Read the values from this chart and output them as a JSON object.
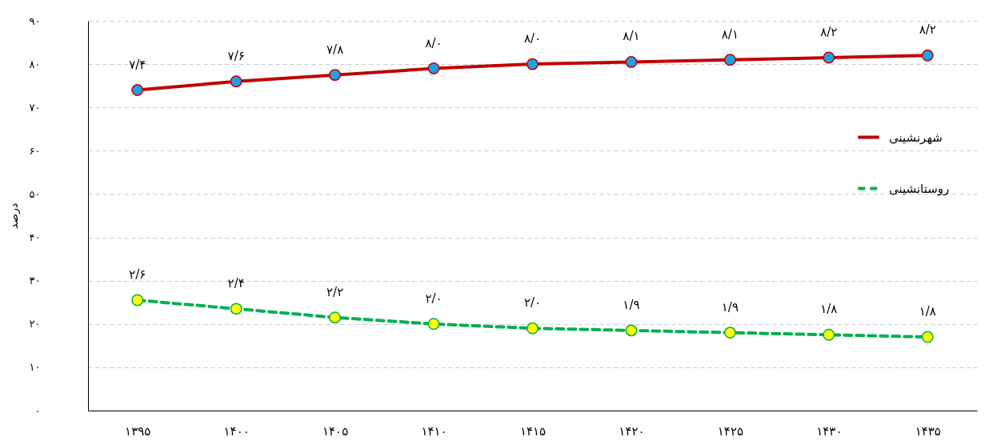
{
  "chart_data": {
    "type": "line",
    "ylabel": "درصد",
    "categories": [
      "۱۳۹۵",
      "۱۴۰۰",
      "۱۴۰۵",
      "۱۴۱۰",
      "۱۴۱۵",
      "۱۴۲۰",
      "۱۴۲۵",
      "۱۴۳۰",
      "۱۴۳۵"
    ],
    "series": [
      {
        "name": "شهرنشینی",
        "color": "#c00000",
        "line_style": "solid",
        "values": [
          74,
          76,
          77.5,
          79,
          80,
          80.5,
          81,
          81.5,
          82
        ]
      },
      {
        "name": "روستانشینی",
        "color": "#00b050",
        "line_style": "dashed",
        "values": [
          25.5,
          23.5,
          21.5,
          20,
          19,
          18.5,
          18,
          17.5,
          17
        ]
      }
    ],
    "annotations": [
      {
        "text": "۷/۴",
        "x": "۱۳۹۵",
        "y": 74
      },
      {
        "text": "۷/۶",
        "x": "۱۴۰۰",
        "y": 76
      },
      {
        "text": "۷/۸",
        "x": "۱۴۰۵",
        "y": 77.5
      },
      {
        "text": "۸/۰",
        "x": "۱۴۱۰",
        "y": 79
      },
      {
        "text": "۸/۰",
        "x": "۱۴۱۵",
        "y": 80
      },
      {
        "text": "۸/۱",
        "x": "۱۴۲۰",
        "y": 80.5
      },
      {
        "text": "۸/۱",
        "x": "۱۴۲۵",
        "y": 81
      },
      {
        "text": "۸/۲",
        "x": "۱۴۳۰",
        "y": 81.5
      },
      {
        "text": "۸/۲",
        "x": "۱۴۳۵",
        "y": 82
      },
      {
        "text": "۲/۶",
        "x": "۱۳۹۵",
        "y": 25.5
      },
      {
        "text": "۲/۴",
        "x": "۱۴۰۰",
        "y": 23.5
      },
      {
        "text": "۲/۲",
        "x": "۱۴۰۵",
        "y": 21.5
      },
      {
        "text": "۲/۰",
        "x": "۱۴۱۰",
        "y": 20
      },
      {
        "text": "۲/۰",
        "x": "۱۴۱۵",
        "y": 19
      },
      {
        "text": "۱/۹",
        "x": "۱۴۲۰",
        "y": 18.5
      },
      {
        "text": "۱/۹",
        "x": "۱۴۲۵",
        "y": 18
      },
      {
        "text": "۱/۸",
        "x": "۱۴۳۰",
        "y": 17.5
      },
      {
        "text": "۱/۸",
        "x": "۱۴۳۵",
        "y": 17
      }
    ],
    "ylim": [
      0,
      90
    ],
    "yticks": [
      {
        "value": 0,
        "label": "۰"
      },
      {
        "value": 10,
        "label": "۱۰"
      },
      {
        "value": 20,
        "label": "۲۰"
      },
      {
        "value": 30,
        "label": "۳۰"
      },
      {
        "value": 40,
        "label": "۴۰"
      },
      {
        "value": 50,
        "label": "۵۰"
      },
      {
        "value": 60,
        "label": "۶۰"
      },
      {
        "value": 70,
        "label": "۷۰"
      },
      {
        "value": 80,
        "label": "۸۰"
      },
      {
        "value": 90,
        "label": "۹۰"
      }
    ],
    "grid": "y",
    "legend": "right",
    "marker": "circle"
  }
}
